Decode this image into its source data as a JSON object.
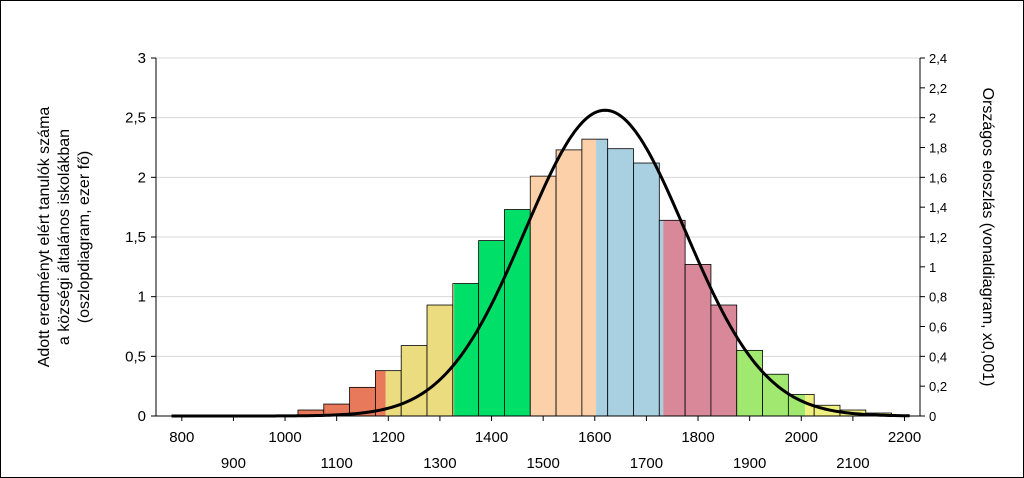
{
  "chart_data": {
    "type": "bar",
    "title": "",
    "ylabel_left": [
      "Adott eredményt elért tanulók száma",
      "a községi általános iskolákban",
      "(oszlopdiagram, ezer fő)"
    ],
    "ylabel_right": "Országos eloszlás (vonaldiagram, x0,001)",
    "xlim": [
      750,
      2230
    ],
    "ylim_left": [
      0,
      3
    ],
    "ylim_right": [
      0,
      2.4
    ],
    "x_ticks_upper": [
      "800",
      "1000",
      "1200",
      "1400",
      "1600",
      "1800",
      "2000",
      "2200"
    ],
    "x_ticks_lower": [
      "900",
      "1100",
      "1300",
      "1500",
      "1700",
      "1900",
      "2100"
    ],
    "y_ticks_left": [
      "0",
      "0,5",
      "1",
      "1,5",
      "2",
      "2,5",
      "3"
    ],
    "y_ticks_right": [
      "0",
      "0,2",
      "0,4",
      "0,6",
      "0,8",
      "1",
      "1,2",
      "1,4",
      "1,6",
      "1,8",
      "2",
      "2,2",
      "2,4"
    ],
    "bar_width": 50,
    "bars": [
      {
        "x": 800,
        "value": 0.0,
        "color": "#e06f50"
      },
      {
        "x": 850,
        "value": 0.0,
        "color": "#e06f50"
      },
      {
        "x": 900,
        "value": 0.0,
        "color": "#e06f50"
      },
      {
        "x": 950,
        "value": 0.003,
        "color": "#e06f50"
      },
      {
        "x": 1000,
        "value": 0.007,
        "color": "#e06f50"
      },
      {
        "x": 1050,
        "value": 0.05,
        "color": "#e8795a"
      },
      {
        "x": 1100,
        "value": 0.1,
        "color": "#e8795a"
      },
      {
        "x": 1150,
        "value": 0.24,
        "color": "#e8795a"
      },
      {
        "x": 1200,
        "value": 0.38,
        "color": "#e8795a",
        "color2": "#ecdc80",
        "split": 0.4
      },
      {
        "x": 1250,
        "value": 0.59,
        "color": "#ecdc80"
      },
      {
        "x": 1300,
        "value": 0.93,
        "color": "#ecdc80"
      },
      {
        "x": 1350,
        "value": 1.11,
        "color": "#ecdc80",
        "color2": "#00e068",
        "split": 0.05
      },
      {
        "x": 1400,
        "value": 1.47,
        "color": "#00e068"
      },
      {
        "x": 1450,
        "value": 1.73,
        "color": "#00e068"
      },
      {
        "x": 1500,
        "value": 2.01,
        "color": "#00e068",
        "color2": "#fcd0a8",
        "split": 0.0
      },
      {
        "x": 1550,
        "value": 2.23,
        "color": "#fcd0a8"
      },
      {
        "x": 1600,
        "value": 2.32,
        "color": "#fcd0a8",
        "color2": "#a8d0e0",
        "split": 0.55
      },
      {
        "x": 1650,
        "value": 2.24,
        "color": "#a8d0e0"
      },
      {
        "x": 1700,
        "value": 2.12,
        "color": "#a8d0e0"
      },
      {
        "x": 1750,
        "value": 1.64,
        "color": "#a8d0e0",
        "color2": "#d88898",
        "split": 0.15
      },
      {
        "x": 1800,
        "value": 1.27,
        "color": "#d88898"
      },
      {
        "x": 1850,
        "value": 0.93,
        "color": "#d88898"
      },
      {
        "x": 1900,
        "value": 0.55,
        "color": "#a0e870"
      },
      {
        "x": 1950,
        "value": 0.35,
        "color": "#a0e870"
      },
      {
        "x": 2000,
        "value": 0.18,
        "color": "#a0e870",
        "color2": "#f0f080",
        "split": 0.65
      },
      {
        "x": 2050,
        "value": 0.09,
        "color": "#f0f080"
      },
      {
        "x": 2100,
        "value": 0.05,
        "color": "#f0f080"
      },
      {
        "x": 2150,
        "value": 0.025,
        "color": "#f0f080"
      }
    ],
    "line": {
      "axis": "right",
      "distribution": "normal",
      "mean": 1620,
      "sd": 155,
      "peak": 2.05,
      "color": "#000000"
    }
  }
}
